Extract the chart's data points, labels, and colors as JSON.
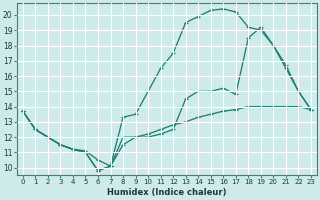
{
  "xlabel": "Humidex (Indice chaleur)",
  "ylabel": "",
  "bg_color": "#ceeaea",
  "grid_color": "#b8d8d8",
  "line_color": "#1a7a6e",
  "xlim": [
    -0.5,
    23.5
  ],
  "ylim": [
    9.5,
    20.8
  ],
  "xticks": [
    0,
    1,
    2,
    3,
    4,
    5,
    6,
    7,
    8,
    9,
    10,
    11,
    12,
    13,
    14,
    15,
    16,
    17,
    18,
    19,
    20,
    21,
    22,
    23
  ],
  "yticks": [
    10,
    11,
    12,
    13,
    14,
    15,
    16,
    17,
    18,
    19,
    20
  ],
  "line1_x": [
    0,
    1,
    2,
    3,
    4,
    5,
    6,
    7,
    8,
    9,
    10,
    11,
    12,
    13,
    14,
    15,
    16,
    17,
    18,
    19,
    20,
    21,
    22,
    23
  ],
  "line1_y": [
    13.7,
    12.5,
    12.0,
    11.5,
    11.2,
    11.0,
    9.8,
    10.1,
    11.5,
    12.0,
    12.2,
    12.5,
    12.8,
    13.0,
    13.3,
    13.5,
    13.7,
    13.8,
    14.0,
    14.0,
    14.0,
    14.0,
    14.0,
    13.8
  ],
  "line2_x": [
    0,
    1,
    2,
    3,
    4,
    5,
    6,
    7,
    8,
    9,
    10,
    11,
    12,
    13,
    14,
    15,
    16,
    17,
    18,
    19,
    20,
    21,
    22,
    23
  ],
  "line2_y": [
    13.7,
    12.5,
    12.0,
    11.5,
    11.2,
    11.0,
    9.8,
    10.1,
    13.3,
    13.5,
    15.0,
    16.5,
    17.5,
    19.5,
    19.9,
    20.3,
    20.4,
    20.2,
    19.2,
    19.0,
    18.0,
    16.7,
    15.0,
    13.8
  ],
  "line3_x": [
    0,
    1,
    2,
    3,
    4,
    5,
    6,
    7,
    8,
    9,
    10,
    11,
    12,
    13,
    14,
    15,
    16,
    17,
    18,
    19,
    20,
    21,
    22,
    23
  ],
  "line3_y": [
    13.7,
    12.5,
    12.0,
    11.5,
    11.2,
    11.1,
    10.5,
    10.1,
    12.0,
    12.0,
    12.0,
    12.2,
    12.5,
    14.5,
    15.0,
    15.0,
    15.2,
    14.8,
    18.5,
    19.2,
    18.0,
    16.5,
    15.0,
    13.8
  ]
}
